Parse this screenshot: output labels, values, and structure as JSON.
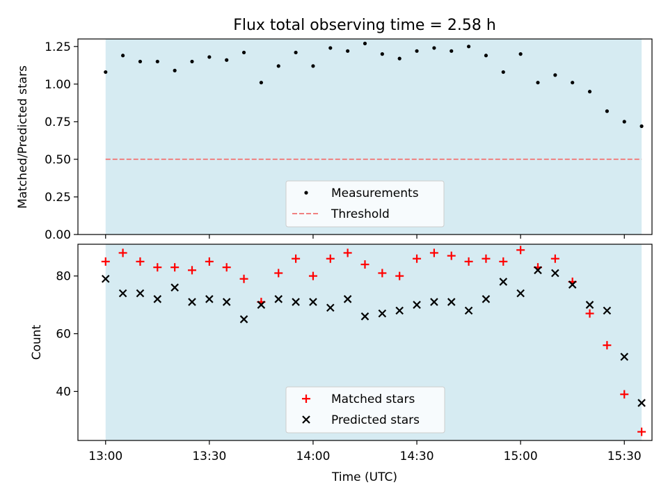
{
  "figure": {
    "title": "Flux total observing time = 2.58 h",
    "xlabel": "Time (UTC)",
    "xticks": [
      "13:00",
      "13:30",
      "14:00",
      "14:30",
      "15:00",
      "15:30"
    ],
    "span_color": "#add8e6",
    "colors": {
      "measurement": "#000000",
      "threshold": "#f08080",
      "matched": "#ff0000",
      "predicted": "#000000"
    }
  },
  "chart_data": [
    {
      "type": "scatter",
      "ylabel": "Matched/Predicted stars",
      "xlim": [
        "12:52",
        "15:38"
      ],
      "ylim": [
        0.0,
        1.3
      ],
      "yticks": [
        "0.00",
        "0.25",
        "0.50",
        "0.75",
        "1.00",
        "1.25"
      ],
      "shaded_span": [
        "13:00",
        "15:35"
      ],
      "threshold": 0.5,
      "legend": {
        "placement": "lower-center",
        "entries": [
          "Measurements",
          "Threshold"
        ]
      },
      "x": [
        "13:00",
        "13:05",
        "13:10",
        "13:15",
        "13:20",
        "13:25",
        "13:30",
        "13:35",
        "13:40",
        "13:45",
        "13:50",
        "13:55",
        "14:00",
        "14:05",
        "14:10",
        "14:15",
        "14:20",
        "14:25",
        "14:30",
        "14:35",
        "14:40",
        "14:45",
        "14:50",
        "14:55",
        "15:00",
        "15:05",
        "15:10",
        "15:15",
        "15:20",
        "15:25",
        "15:30",
        "15:35"
      ],
      "series": [
        {
          "name": "Measurements",
          "values": [
            1.08,
            1.19,
            1.15,
            1.15,
            1.09,
            1.15,
            1.18,
            1.16,
            1.21,
            1.01,
            1.12,
            1.21,
            1.12,
            1.24,
            1.22,
            1.27,
            1.2,
            1.17,
            1.22,
            1.24,
            1.22,
            1.25,
            1.19,
            1.08,
            1.2,
            1.01,
            1.06,
            1.01,
            0.95,
            0.82,
            0.75,
            0.72
          ]
        },
        {
          "name": "Threshold",
          "values": [
            0.5
          ]
        }
      ]
    },
    {
      "type": "scatter",
      "ylabel": "Count",
      "xlim": [
        "12:52",
        "15:38"
      ],
      "ylim": [
        23,
        91
      ],
      "yticks": [
        "40",
        "60",
        "80"
      ],
      "shaded_span": [
        "13:00",
        "15:35"
      ],
      "legend": {
        "placement": "lower-center",
        "entries": [
          "Matched stars",
          "Predicted stars"
        ]
      },
      "x": [
        "13:00",
        "13:05",
        "13:10",
        "13:15",
        "13:20",
        "13:25",
        "13:30",
        "13:35",
        "13:40",
        "13:45",
        "13:50",
        "13:55",
        "14:00",
        "14:05",
        "14:10",
        "14:15",
        "14:20",
        "14:25",
        "14:30",
        "14:35",
        "14:40",
        "14:45",
        "14:50",
        "14:55",
        "15:00",
        "15:05",
        "15:10",
        "15:15",
        "15:20",
        "15:25",
        "15:30",
        "15:35"
      ],
      "series": [
        {
          "name": "Matched stars",
          "values": [
            85,
            88,
            85,
            83,
            83,
            82,
            85,
            83,
            79,
            71,
            81,
            86,
            80,
            86,
            88,
            84,
            81,
            80,
            86,
            88,
            87,
            85,
            86,
            85,
            89,
            83,
            86,
            78,
            67,
            56,
            39,
            26
          ]
        },
        {
          "name": "Predicted stars",
          "values": [
            79,
            74,
            74,
            72,
            76,
            71,
            72,
            71,
            65,
            70,
            72,
            71,
            71,
            69,
            72,
            66,
            67,
            68,
            70,
            71,
            71,
            68,
            72,
            78,
            74,
            82,
            81,
            77,
            70,
            68,
            52,
            36
          ]
        }
      ]
    }
  ]
}
